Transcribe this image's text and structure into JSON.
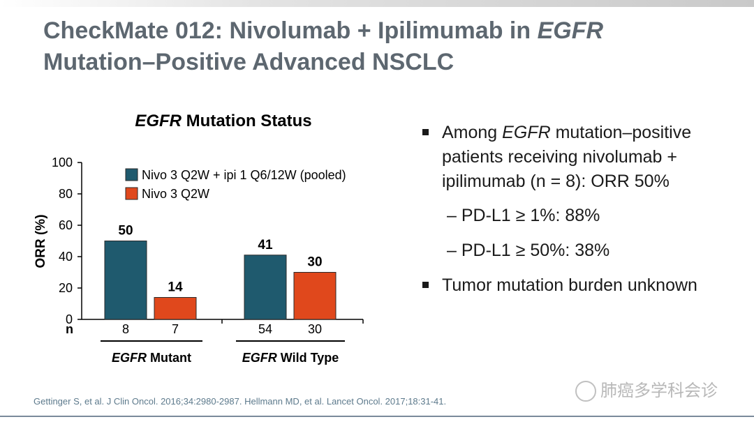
{
  "slide": {
    "title_line1_a": "CheckMate 012: Nivolumab + Ipilimumab in ",
    "title_line1_b": "EGFR",
    "title_line2": "Mutation–Positive Advanced NSCLC"
  },
  "chart_title": {
    "italic": "EGFR",
    "rest": " Mutation Status"
  },
  "chart_data": {
    "type": "bar",
    "ylabel": "ORR (%)",
    "ylim": [
      0,
      100
    ],
    "yticks": [
      0,
      20,
      40,
      60,
      80,
      100
    ],
    "n_label": "n",
    "legend_placement": "top-left",
    "series": [
      {
        "name": "Nivo 3 Q2W + ipi 1 Q6/12W (pooled)",
        "color": "#1f5a6e",
        "values": [
          50,
          41
        ],
        "n": [
          "8",
          "54"
        ]
      },
      {
        "name": "Nivo 3 Q2W",
        "color": "#e0481c",
        "values": [
          14,
          30
        ],
        "n": [
          "7",
          "30"
        ]
      }
    ],
    "groups": [
      {
        "italic": "EGFR",
        "rest": " Mutant"
      },
      {
        "italic": "EGFR",
        "rest": " Wild Type"
      }
    ]
  },
  "bullets": {
    "main1": {
      "a": "Among ",
      "b": "EGFR",
      "c": " mutation–positive patients receiving nivolumab + ipilimumab (n = 8): ORR 50%"
    },
    "sub1": "– PD-L1 ≥ 1%: 88%",
    "sub2": "– PD-L1 ≥ 50%: 38%",
    "main2": "Tumor mutation burden unknown"
  },
  "footer": "Gettinger S, et al. J Clin Oncol. 2016;34:2980-2987. Hellmann MD, et al. Lancet Oncol. 2017;18:31-41.",
  "watermark": "肺癌多学科会诊"
}
